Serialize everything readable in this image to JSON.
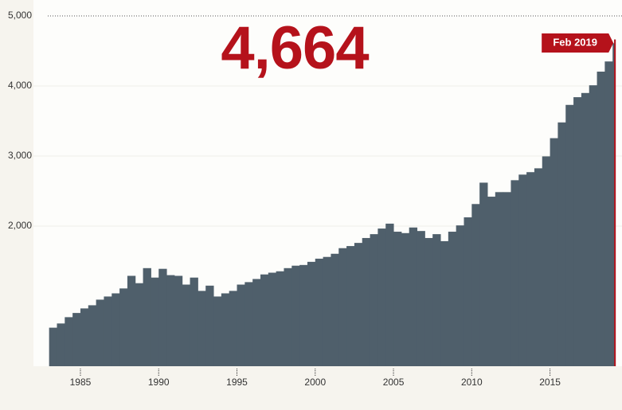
{
  "chart_data": {
    "type": "step-area",
    "x": [
      1983.0,
      1983.5,
      1984.0,
      1984.5,
      1985.0,
      1985.5,
      1986.0,
      1986.5,
      1987.0,
      1987.5,
      1988.0,
      1988.5,
      1989.0,
      1989.5,
      1990.0,
      1990.5,
      1991.0,
      1991.5,
      1992.0,
      1992.5,
      1993.0,
      1993.5,
      1994.0,
      1994.5,
      1995.0,
      1995.5,
      1996.0,
      1996.5,
      1997.0,
      1997.5,
      1998.0,
      1998.5,
      1999.0,
      1999.5,
      2000.0,
      2000.5,
      2001.0,
      2001.5,
      2002.0,
      2002.5,
      2003.0,
      2003.5,
      2004.0,
      2004.5,
      2005.0,
      2005.5,
      2006.0,
      2006.5,
      2007.0,
      2007.5,
      2008.0,
      2008.5,
      2009.0,
      2009.5,
      2010.0,
      2010.5,
      2011.0,
      2011.5,
      2012.0,
      2012.5,
      2013.0,
      2013.5,
      2014.0,
      2014.5,
      2015.0,
      2015.5,
      2016.0,
      2016.5,
      2017.0,
      2017.5,
      2018.0,
      2018.5,
      2019.0,
      2019.1
    ],
    "values": [
      550,
      610,
      700,
      760,
      825,
      870,
      950,
      995,
      1040,
      1110,
      1290,
      1185,
      1400,
      1265,
      1390,
      1300,
      1290,
      1165,
      1265,
      1075,
      1150,
      995,
      1040,
      1075,
      1165,
      1200,
      1245,
      1310,
      1335,
      1355,
      1400,
      1435,
      1445,
      1490,
      1535,
      1560,
      1605,
      1685,
      1715,
      1760,
      1830,
      1885,
      1965,
      2035,
      1920,
      1900,
      1980,
      1930,
      1830,
      1885,
      1785,
      1920,
      2010,
      2125,
      2315,
      2620,
      2420,
      2485,
      2485,
      2655,
      2735,
      2770,
      2825,
      2995,
      3255,
      3480,
      3730,
      3840,
      3900,
      4010,
      4205,
      4350,
      4610,
      4664
    ],
    "color": "#4f5f6b",
    "xlim": [
      1982,
      2019.6
    ],
    "xticks": [
      1985,
      1990,
      1995,
      2000,
      2005,
      2010,
      2015
    ],
    "ylim": [
      0,
      5000
    ],
    "yticks": [
      {
        "value": 2000,
        "label": "2,000"
      },
      {
        "value": 3000,
        "label": "3,000"
      },
      {
        "value": 4000,
        "label": "4,000"
      },
      {
        "value": 5000,
        "label": "5,000"
      }
    ],
    "highlight": {
      "value": 4664,
      "label": "4,664",
      "date": "Feb 2019",
      "color": "#b5121b"
    }
  }
}
